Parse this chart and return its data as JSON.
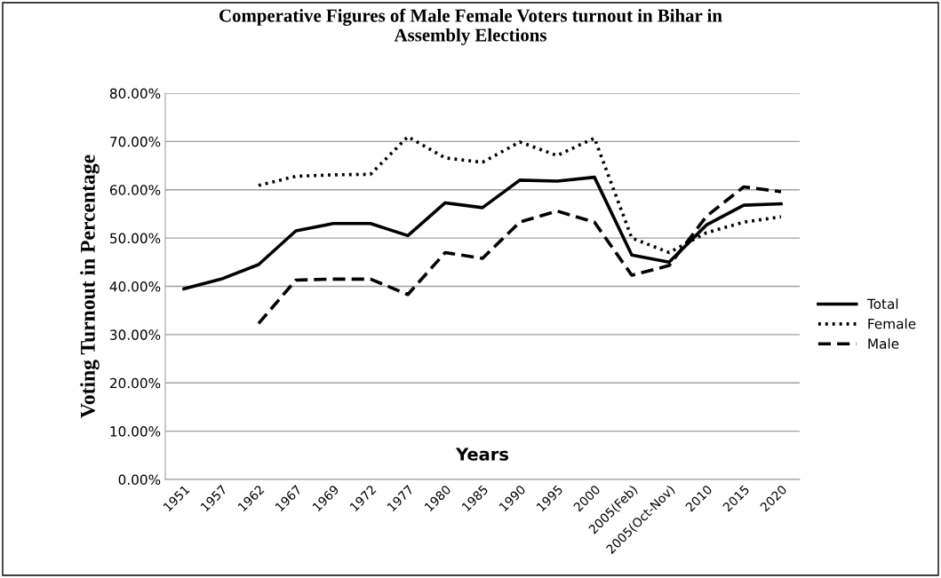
{
  "chart_data": {
    "type": "line",
    "title": "Comperative Figures of Male Female Voters turnout in Bihar in\nAssembly Elections",
    "xlabel": "Years",
    "ylabel": "Voting Turnout in Percentage",
    "categories": [
      "1951",
      "1957",
      "1962",
      "1967",
      "1969",
      "1972",
      "1977",
      "1980",
      "1985",
      "1990",
      "1995",
      "2000",
      "2005(Feb)",
      "2005(Oct-Nov)",
      "2010",
      "2015",
      "2020"
    ],
    "series": [
      {
        "name": "Total",
        "color": "#000000",
        "line_style": "solid",
        "values": [
          39.5,
          41.5,
          44.5,
          51.5,
          53.0,
          53.0,
          50.5,
          57.3,
          56.3,
          62.0,
          61.8,
          62.6,
          46.5,
          45.0,
          52.7,
          56.8,
          57.1
        ]
      },
      {
        "name": "Female",
        "color": "#000000",
        "line_style": "dotted",
        "values": [
          null,
          null,
          60.9,
          62.8,
          63.1,
          63.2,
          71.0,
          66.6,
          65.7,
          69.9,
          67.1,
          70.7,
          50.0,
          47.0,
          51.1,
          53.3,
          54.4
        ]
      },
      {
        "name": "Male",
        "color": "#000000",
        "line_style": "dashed",
        "values": [
          null,
          null,
          32.3,
          41.3,
          41.5,
          41.5,
          38.3,
          47.0,
          45.8,
          53.3,
          55.6,
          53.3,
          42.3,
          44.3,
          54.5,
          60.6,
          59.6
        ]
      }
    ],
    "ylim": [
      0,
      80
    ],
    "yticks": [
      {
        "value": 0,
        "label": "0.00%"
      },
      {
        "value": 10,
        "label": "10.00%"
      },
      {
        "value": 20,
        "label": "20.00%"
      },
      {
        "value": 30,
        "label": "30.00%"
      },
      {
        "value": 40,
        "label": "40.00%"
      },
      {
        "value": 50,
        "label": "50.00%"
      },
      {
        "value": 60,
        "label": "60.00%"
      },
      {
        "value": 70,
        "label": "70.00%"
      },
      {
        "value": 80,
        "label": "80.00%"
      }
    ],
    "grid": "y",
    "legend": "right",
    "marker": "none"
  }
}
